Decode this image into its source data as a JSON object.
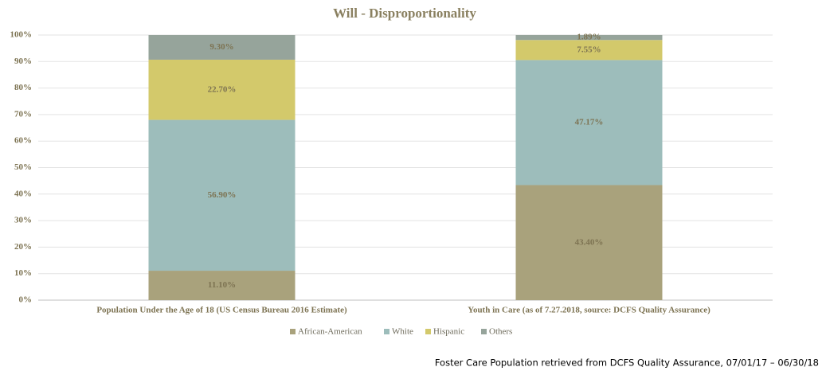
{
  "chart_data": {
    "type": "stacked_bar",
    "title": "Will - Disproportionality",
    "categories": [
      "Population Under the Age of 18 (US Census Bureau 2016 Estimate)",
      "Youth in Care (as of 7.27.2018, source: DCFS Quality Assurance)"
    ],
    "series": [
      {
        "name": "African-American",
        "color": "#a9a27c",
        "values": [
          11.1,
          43.4
        ],
        "value_labels": [
          "11.10%",
          "43.40%"
        ]
      },
      {
        "name": "White",
        "color": "#9dbdbb",
        "values": [
          56.9,
          47.17
        ],
        "value_labels": [
          "56.90%",
          "47.17%"
        ]
      },
      {
        "name": "Hispanic",
        "color": "#d3c96b",
        "values": [
          22.7,
          7.55
        ],
        "value_labels": [
          "22.70%",
          "7.55%"
        ]
      },
      {
        "name": "Others",
        "color": "#96a49b",
        "values": [
          9.3,
          1.89
        ],
        "value_labels": [
          "9.30%",
          "1.89%"
        ]
      }
    ],
    "ylim": [
      0,
      100
    ],
    "yticks": [
      {
        "value": 0,
        "label": "0%"
      },
      {
        "value": 10,
        "label": "10%"
      },
      {
        "value": 20,
        "label": "20%"
      },
      {
        "value": 30,
        "label": "30%"
      },
      {
        "value": 40,
        "label": "40%"
      },
      {
        "value": 50,
        "label": "50%"
      },
      {
        "value": 60,
        "label": "60%"
      },
      {
        "value": 70,
        "label": "70%"
      },
      {
        "value": 80,
        "label": "80%"
      },
      {
        "value": 90,
        "label": "90%"
      },
      {
        "value": 100,
        "label": "100%"
      }
    ],
    "grid": true,
    "legend": "bottom",
    "footnote": "Foster Care Population retrieved from DCFS Quality Assurance, 07/01/17 – 06/30/18"
  }
}
